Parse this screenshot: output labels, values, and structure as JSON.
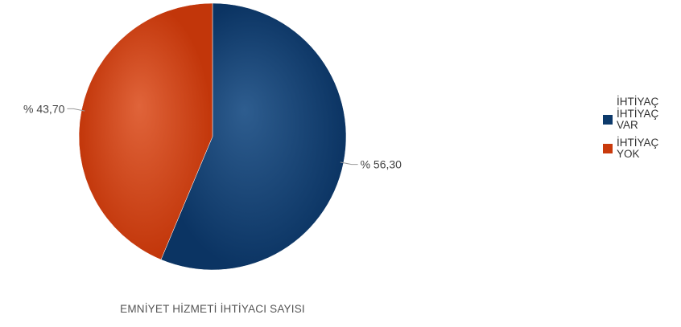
{
  "chart_data": {
    "type": "pie",
    "title": "EMNİYET HİZMETİ İHTİYACI SAYISI",
    "legend_title": "İHTİYAÇ",
    "legend_position": "right",
    "slices": [
      {
        "name": "İHTİYAÇ VAR",
        "value": 56.3,
        "label": "% 56,30",
        "color": "#0d3a6b"
      },
      {
        "name": "İHTİYAÇ YOK",
        "value": 43.7,
        "label": "% 43,70",
        "color": "#c93a0c"
      }
    ],
    "start_angle_deg": 0,
    "direction": "clockwise"
  }
}
